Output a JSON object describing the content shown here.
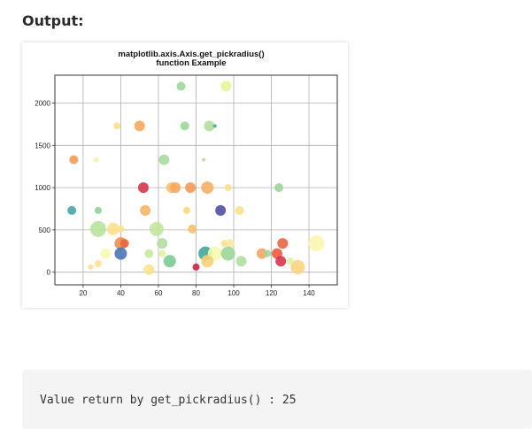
{
  "heading": "Output:",
  "console": {
    "text": "Value return by get_pickradius() : 25"
  },
  "chart_data": {
    "type": "scatter",
    "title_line1": "matplotlib.axis.Axis.get_pickradius()",
    "title_line2": "function Example",
    "xlim": [
      5,
      155
    ],
    "ylim": [
      -150,
      2330
    ],
    "x_ticks": [
      20,
      40,
      60,
      80,
      100,
      120,
      140
    ],
    "y_ticks": [
      0,
      500,
      1000,
      1500,
      2000
    ],
    "grid": true,
    "points": [
      {
        "x": 72,
        "y": 2200,
        "s": 5,
        "c": "#9cd79a"
      },
      {
        "x": 96,
        "y": 2200,
        "s": 6,
        "c": "#eaf39c"
      },
      {
        "x": 38,
        "y": 1730,
        "s": 4,
        "c": "#fde08b"
      },
      {
        "x": 50,
        "y": 1730,
        "s": 6,
        "c": "#f6a75d"
      },
      {
        "x": 74,
        "y": 1730,
        "s": 5,
        "c": "#9cd79a"
      },
      {
        "x": 87,
        "y": 1730,
        "s": 6,
        "c": "#b4de9f"
      },
      {
        "x": 90,
        "y": 1730,
        "s": 2,
        "c": "#3fa99a"
      },
      {
        "x": 15,
        "y": 1330,
        "s": 5,
        "c": "#f29a55"
      },
      {
        "x": 27,
        "y": 1330,
        "s": 3,
        "c": "#f9f2ae"
      },
      {
        "x": 63,
        "y": 1330,
        "s": 6,
        "c": "#a7dca0"
      },
      {
        "x": 84,
        "y": 1330,
        "s": 2,
        "c": "#b4de9f"
      },
      {
        "x": 52,
        "y": 1000,
        "s": 6,
        "c": "#d8344f"
      },
      {
        "x": 67,
        "y": 1000,
        "s": 6,
        "c": "#f8c06a"
      },
      {
        "x": 69,
        "y": 1000,
        "s": 6,
        "c": "#f6a75d"
      },
      {
        "x": 77,
        "y": 1000,
        "s": 6,
        "c": "#f29a55"
      },
      {
        "x": 86,
        "y": 1000,
        "s": 7,
        "c": "#f7b066"
      },
      {
        "x": 97,
        "y": 1000,
        "s": 4,
        "c": "#fde08b"
      },
      {
        "x": 124,
        "y": 1000,
        "s": 5,
        "c": "#9cd79a"
      },
      {
        "x": 14,
        "y": 730,
        "s": 5,
        "c": "#45a7a6"
      },
      {
        "x": 28,
        "y": 730,
        "s": 4,
        "c": "#8fd299"
      },
      {
        "x": 53,
        "y": 730,
        "s": 6,
        "c": "#f6b565"
      },
      {
        "x": 75,
        "y": 730,
        "s": 4,
        "c": "#fdd77c"
      },
      {
        "x": 93,
        "y": 730,
        "s": 6,
        "c": "#4c4fa0"
      },
      {
        "x": 103,
        "y": 730,
        "s": 5,
        "c": "#fde08b"
      },
      {
        "x": 28,
        "y": 510,
        "s": 9,
        "c": "#b9e2a0"
      },
      {
        "x": 36,
        "y": 510,
        "s": 7,
        "c": "#fde08b"
      },
      {
        "x": 40,
        "y": 510,
        "s": 4,
        "c": "#fbe28d"
      },
      {
        "x": 59,
        "y": 510,
        "s": 8,
        "c": "#c2e6a0"
      },
      {
        "x": 78,
        "y": 510,
        "s": 5,
        "c": "#f8c06a"
      },
      {
        "x": 40,
        "y": 340,
        "s": 7,
        "c": "#f08c50"
      },
      {
        "x": 42,
        "y": 340,
        "s": 5,
        "c": "#e8663f"
      },
      {
        "x": 62,
        "y": 340,
        "s": 6,
        "c": "#b4de9f"
      },
      {
        "x": 95,
        "y": 340,
        "s": 4,
        "c": "#fbe28d"
      },
      {
        "x": 98,
        "y": 340,
        "s": 5,
        "c": "#fde7a3"
      },
      {
        "x": 126,
        "y": 340,
        "s": 6,
        "c": "#e8663f"
      },
      {
        "x": 144,
        "y": 340,
        "s": 9,
        "c": "#faf6b0"
      },
      {
        "x": 40,
        "y": 220,
        "s": 7,
        "c": "#4a77b4"
      },
      {
        "x": 32,
        "y": 220,
        "s": 6,
        "c": "#f5f9b5"
      },
      {
        "x": 55,
        "y": 220,
        "s": 5,
        "c": "#c8e89f"
      },
      {
        "x": 62,
        "y": 220,
        "s": 4,
        "c": "#e0f2a5"
      },
      {
        "x": 85,
        "y": 220,
        "s": 8,
        "c": "#3fa99a"
      },
      {
        "x": 90,
        "y": 220,
        "s": 8,
        "c": "#f6f9b0"
      },
      {
        "x": 97,
        "y": 220,
        "s": 8,
        "c": "#9cd79a"
      },
      {
        "x": 115,
        "y": 220,
        "s": 6,
        "c": "#f2a565"
      },
      {
        "x": 118,
        "y": 220,
        "s": 4,
        "c": "#9cd79a"
      },
      {
        "x": 123,
        "y": 220,
        "s": 6,
        "c": "#f05a40"
      },
      {
        "x": 28,
        "y": 100,
        "s": 4,
        "c": "#fbe28d"
      },
      {
        "x": 24,
        "y": 60,
        "s": 3,
        "c": "#fde08b"
      },
      {
        "x": 66,
        "y": 130,
        "s": 7,
        "c": "#7ccb96"
      },
      {
        "x": 86,
        "y": 130,
        "s": 7,
        "c": "#fbcf7a"
      },
      {
        "x": 104,
        "y": 130,
        "s": 6,
        "c": "#b4de9f"
      },
      {
        "x": 125,
        "y": 130,
        "s": 6,
        "c": "#d8344f"
      },
      {
        "x": 55,
        "y": 30,
        "s": 6,
        "c": "#fbe28d"
      },
      {
        "x": 80,
        "y": 60,
        "s": 4,
        "c": "#c8243f"
      },
      {
        "x": 134,
        "y": 60,
        "s": 8,
        "c": "#fbd480"
      },
      {
        "x": 130,
        "y": 130,
        "s": 4,
        "c": "#e0f2a5"
      }
    ]
  }
}
